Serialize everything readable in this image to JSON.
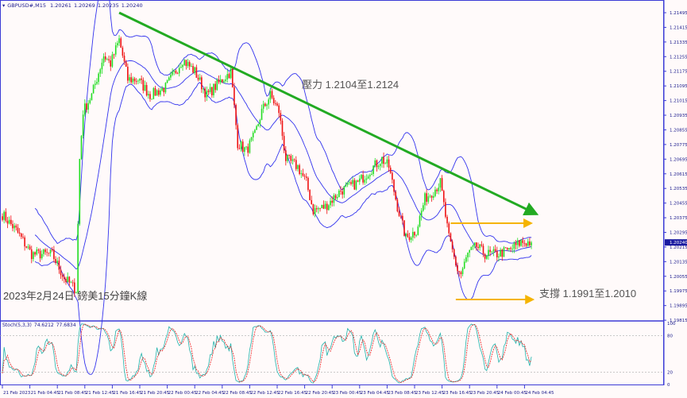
{
  "header": {
    "symbol": "GBPUSD#,M15",
    "quote": [
      "1.20261",
      "1.20269",
      "1.20235",
      "1.20240"
    ]
  },
  "title_text": "2023年2月24日 鎊美15分鐘K線",
  "stoch_label": {
    "name": "Stoch(5,3,3)",
    "k": "74.6212",
    "d": "77.6834"
  },
  "colors": {
    "background": "#fffafa",
    "axis": "#3b3bd6",
    "bull": "#22dd22",
    "bear": "#ee1111",
    "bands": "#3333ee",
    "trend": "#22aa22",
    "range": "#f5b400",
    "stoch_main": "#20b2aa",
    "stoch_signal": "#ee2222"
  },
  "chart_data": {
    "type": "candlestick",
    "timeframe": "M15",
    "current_price": "1.20240",
    "y_ticks": [
      "1.21495",
      "1.21415",
      "1.21335",
      "1.21255",
      "1.21175",
      "1.21095",
      "1.21015",
      "1.20935",
      "1.20855",
      "1.20775",
      "1.20695",
      "1.20615",
      "1.20535",
      "1.20455",
      "1.20375",
      "1.20295",
      "1.20215",
      "1.20135",
      "1.20055",
      "1.19975",
      "1.19895",
      "1.19815"
    ],
    "ylim": [
      1.19815,
      1.21495
    ],
    "x_ticks": [
      "21 Feb 2023",
      "21 Feb 04:45",
      "21 Feb 08:45",
      "21 Feb 12:45",
      "21 Feb 16:45",
      "21 Feb 20:45",
      "22 Feb 00:45",
      "22 Feb 04:45",
      "22 Feb 08:45",
      "22 Feb 12:45",
      "22 Feb 16:45",
      "22 Feb 20:45",
      "23 Feb 00:45",
      "23 Feb 04:45",
      "23 Feb 08:45",
      "23 Feb 12:45",
      "23 Feb 16:45",
      "23 Feb 20:45",
      "24 Feb 00:45",
      "24 Feb 04:45"
    ],
    "close_path": [
      [
        "21 00:45",
        1.20393
      ],
      [
        "21 02:45",
        1.20306
      ],
      [
        "21 05:00",
        1.20176
      ],
      [
        "21 08:00",
        1.20176
      ],
      [
        "21 09:45",
        1.20045
      ],
      [
        "21 11:30",
        1.1998
      ],
      [
        "21 12:00",
        1.20696
      ],
      [
        "21 12:30",
        1.20957
      ],
      [
        "21 13:45",
        1.21044
      ],
      [
        "21 15:30",
        1.21261
      ],
      [
        "21 16:30",
        1.21217
      ],
      [
        "21 17:45",
        1.21347
      ],
      [
        "21 19:00",
        1.2113
      ],
      [
        "21 20:30",
        1.2113
      ],
      [
        "21 22:15",
        1.21044
      ],
      [
        "22 00:30",
        1.21087
      ],
      [
        "22 03:00",
        1.21239
      ],
      [
        "22 04:45",
        1.21174
      ],
      [
        "22 06:30",
        1.21044
      ],
      [
        "22 08:45",
        1.2113
      ],
      [
        "22 10:00",
        1.21174
      ],
      [
        "22 11:00",
        1.20783
      ],
      [
        "22 12:15",
        1.2074
      ],
      [
        "22 13:30",
        1.20827
      ],
      [
        "22 14:30",
        1.20957
      ],
      [
        "22 15:45",
        1.21044
      ],
      [
        "22 17:00",
        1.20957
      ],
      [
        "22 18:00",
        1.20696
      ],
      [
        "22 19:45",
        1.20653
      ],
      [
        "22 21:00",
        1.20566
      ],
      [
        "22 22:00",
        1.20414
      ],
      [
        "22 23:45",
        1.20436
      ],
      [
        "23 02:00",
        1.20523
      ],
      [
        "23 04:30",
        1.20566
      ],
      [
        "23 06:45",
        1.20653
      ],
      [
        "23 08:00",
        1.20696
      ],
      [
        "23 09:00",
        1.20653
      ],
      [
        "23 10:15",
        1.20436
      ],
      [
        "23 11:30",
        1.20262
      ],
      [
        "23 13:00",
        1.20306
      ],
      [
        "23 14:15",
        1.20479
      ],
      [
        "23 15:30",
        1.20523
      ],
      [
        "23 16:30",
        1.20566
      ],
      [
        "23 17:45",
        1.20262
      ],
      [
        "23 19:00",
        1.20089
      ],
      [
        "23 19:30",
        1.20067
      ],
      [
        "23 20:30",
        1.20176
      ],
      [
        "23 21:45",
        1.20219
      ],
      [
        "23 23:00",
        1.20176
      ],
      [
        "24 00:45",
        1.20176
      ],
      [
        "24 02:30",
        1.20197
      ],
      [
        "24 04:15",
        1.20241
      ],
      [
        "24 05:45",
        1.2024
      ]
    ],
    "indicators": [
      "Bollinger Bands",
      "Stoch(5,3,3)"
    ],
    "stoch_levels": [
      20,
      80
    ],
    "stoch_ticks": [
      "100",
      "80",
      "20",
      "0"
    ],
    "annotations": {
      "resistance_label": "壓力 1.2104至1.2124",
      "support_label": "支撐 1.1991至1.2010",
      "trendline": {
        "from": [
          "21 17:45",
          1.21495
        ],
        "to": [
          "24 06:30",
          1.20395
        ]
      },
      "resistance_line": {
        "from": [
          "23 18:00",
          1.20345
        ],
        "to": [
          "24 05:45",
          1.20345
        ]
      },
      "support_line": {
        "from": [
          "23 18:45",
          1.19928
        ],
        "to": [
          "24 06:00",
          1.19928
        ]
      }
    }
  }
}
